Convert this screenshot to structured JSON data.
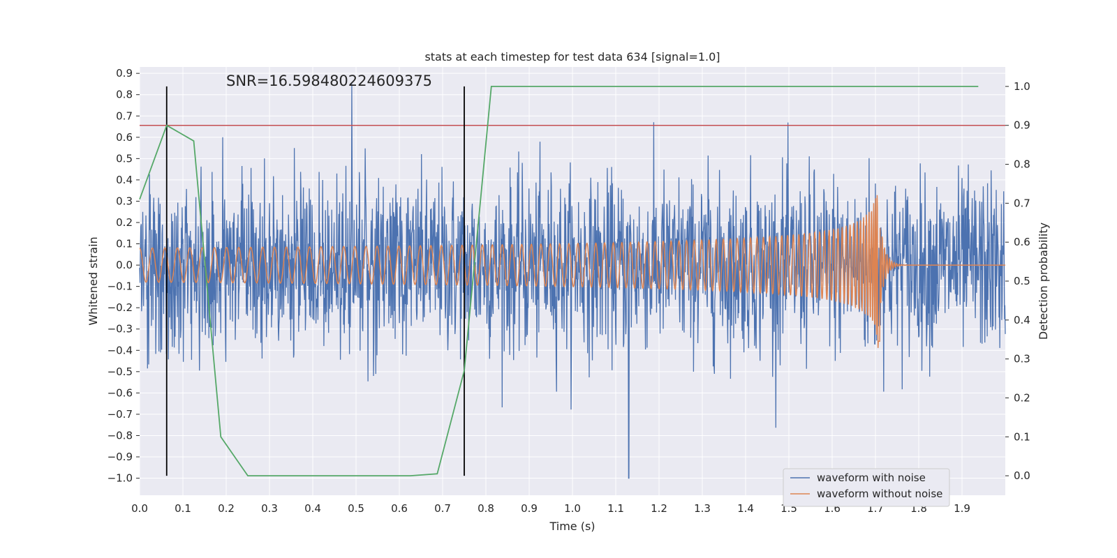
{
  "chart_data": {
    "type": "line",
    "title": "stats at each timestep for test data 634 [signal=1.0]",
    "annotation": "SNR=16.598480224609375",
    "xlabel": "Time (s)",
    "ylabel_left": "Whitened strain",
    "ylabel_right": "Detection probability",
    "xlim": [
      0.0,
      2.0
    ],
    "ylim_left": [
      -1.08,
      0.93
    ],
    "ylim_right": [
      -0.05,
      1.05
    ],
    "x_ticks": [
      0.0,
      0.1,
      0.2,
      0.3,
      0.4,
      0.5,
      0.6,
      0.7,
      0.8,
      0.9,
      1.0,
      1.1,
      1.2,
      1.3,
      1.4,
      1.5,
      1.6,
      1.7,
      1.8,
      1.9
    ],
    "y_ticks_left": [
      0.9,
      0.8,
      0.7,
      0.6,
      0.5,
      0.4,
      0.3,
      0.2,
      0.1,
      0.0,
      -0.1,
      -0.2,
      -0.3,
      -0.4,
      -0.5,
      -0.6,
      -0.7,
      -0.8,
      -0.9,
      -1.0
    ],
    "y_ticks_right": [
      1.0,
      0.9,
      0.8,
      0.7,
      0.6,
      0.5,
      0.4,
      0.3,
      0.2,
      0.1,
      0.0
    ],
    "grid": true,
    "legend_position": "lower-right",
    "colors": {
      "background": "#eaeaf2",
      "grid": "#ffffff",
      "noisy": "#4c72b0",
      "clean": "#dd8452",
      "probability": "#55a868",
      "threshold": "#c44e52",
      "vertical_markers": "#000000",
      "text": "#262626"
    },
    "series": [
      {
        "name": "waveform with noise",
        "axis": "left",
        "description_stats": {
          "t_start": 0.0,
          "t_end": 2.0,
          "approx_std": 0.2,
          "min": -1.0,
          "max": 0.85
        }
      },
      {
        "name": "waveform without noise",
        "axis": "left",
        "description_stats": {
          "t_start": 0.0,
          "t_merger": 1.71,
          "amplitude_start": 0.08,
          "amplitude_peak": 0.46
        }
      },
      {
        "axis": "right",
        "x": [
          0.0,
          0.0625,
          0.125,
          0.1875,
          0.25,
          0.3125,
          0.375,
          0.4375,
          0.5,
          0.5625,
          0.625,
          0.6875,
          0.75,
          0.8125,
          0.875,
          0.9375,
          1.0,
          1.0625,
          1.125,
          1.1875,
          1.25,
          1.3125,
          1.375,
          1.4375,
          1.5,
          1.5625,
          1.625,
          1.6875,
          1.75,
          1.8125,
          1.875,
          1.9375
        ],
        "y": [
          0.71,
          0.9,
          0.86,
          0.1,
          0.0,
          0.0,
          0.0,
          0.0,
          0.0,
          0.0,
          0.0,
          0.005,
          0.27,
          1.0,
          1.0,
          1.0,
          1.0,
          1.0,
          1.0,
          1.0,
          1.0,
          1.0,
          1.0,
          1.0,
          1.0,
          1.0,
          1.0,
          1.0,
          1.0,
          1.0,
          1.0,
          1.0
        ]
      }
    ],
    "threshold": {
      "axis": "right",
      "value": 0.9
    },
    "vertical_lines": [
      {
        "x": 0.0625,
        "y_range_right": [
          0.0,
          1.0
        ]
      },
      {
        "x": 0.75,
        "y_range_right": [
          0.0,
          1.0
        ]
      }
    ]
  },
  "legend": {
    "items": [
      {
        "label": "waveform with noise",
        "color": "#4c72b0"
      },
      {
        "label": "waveform without noise",
        "color": "#dd8452"
      }
    ]
  }
}
